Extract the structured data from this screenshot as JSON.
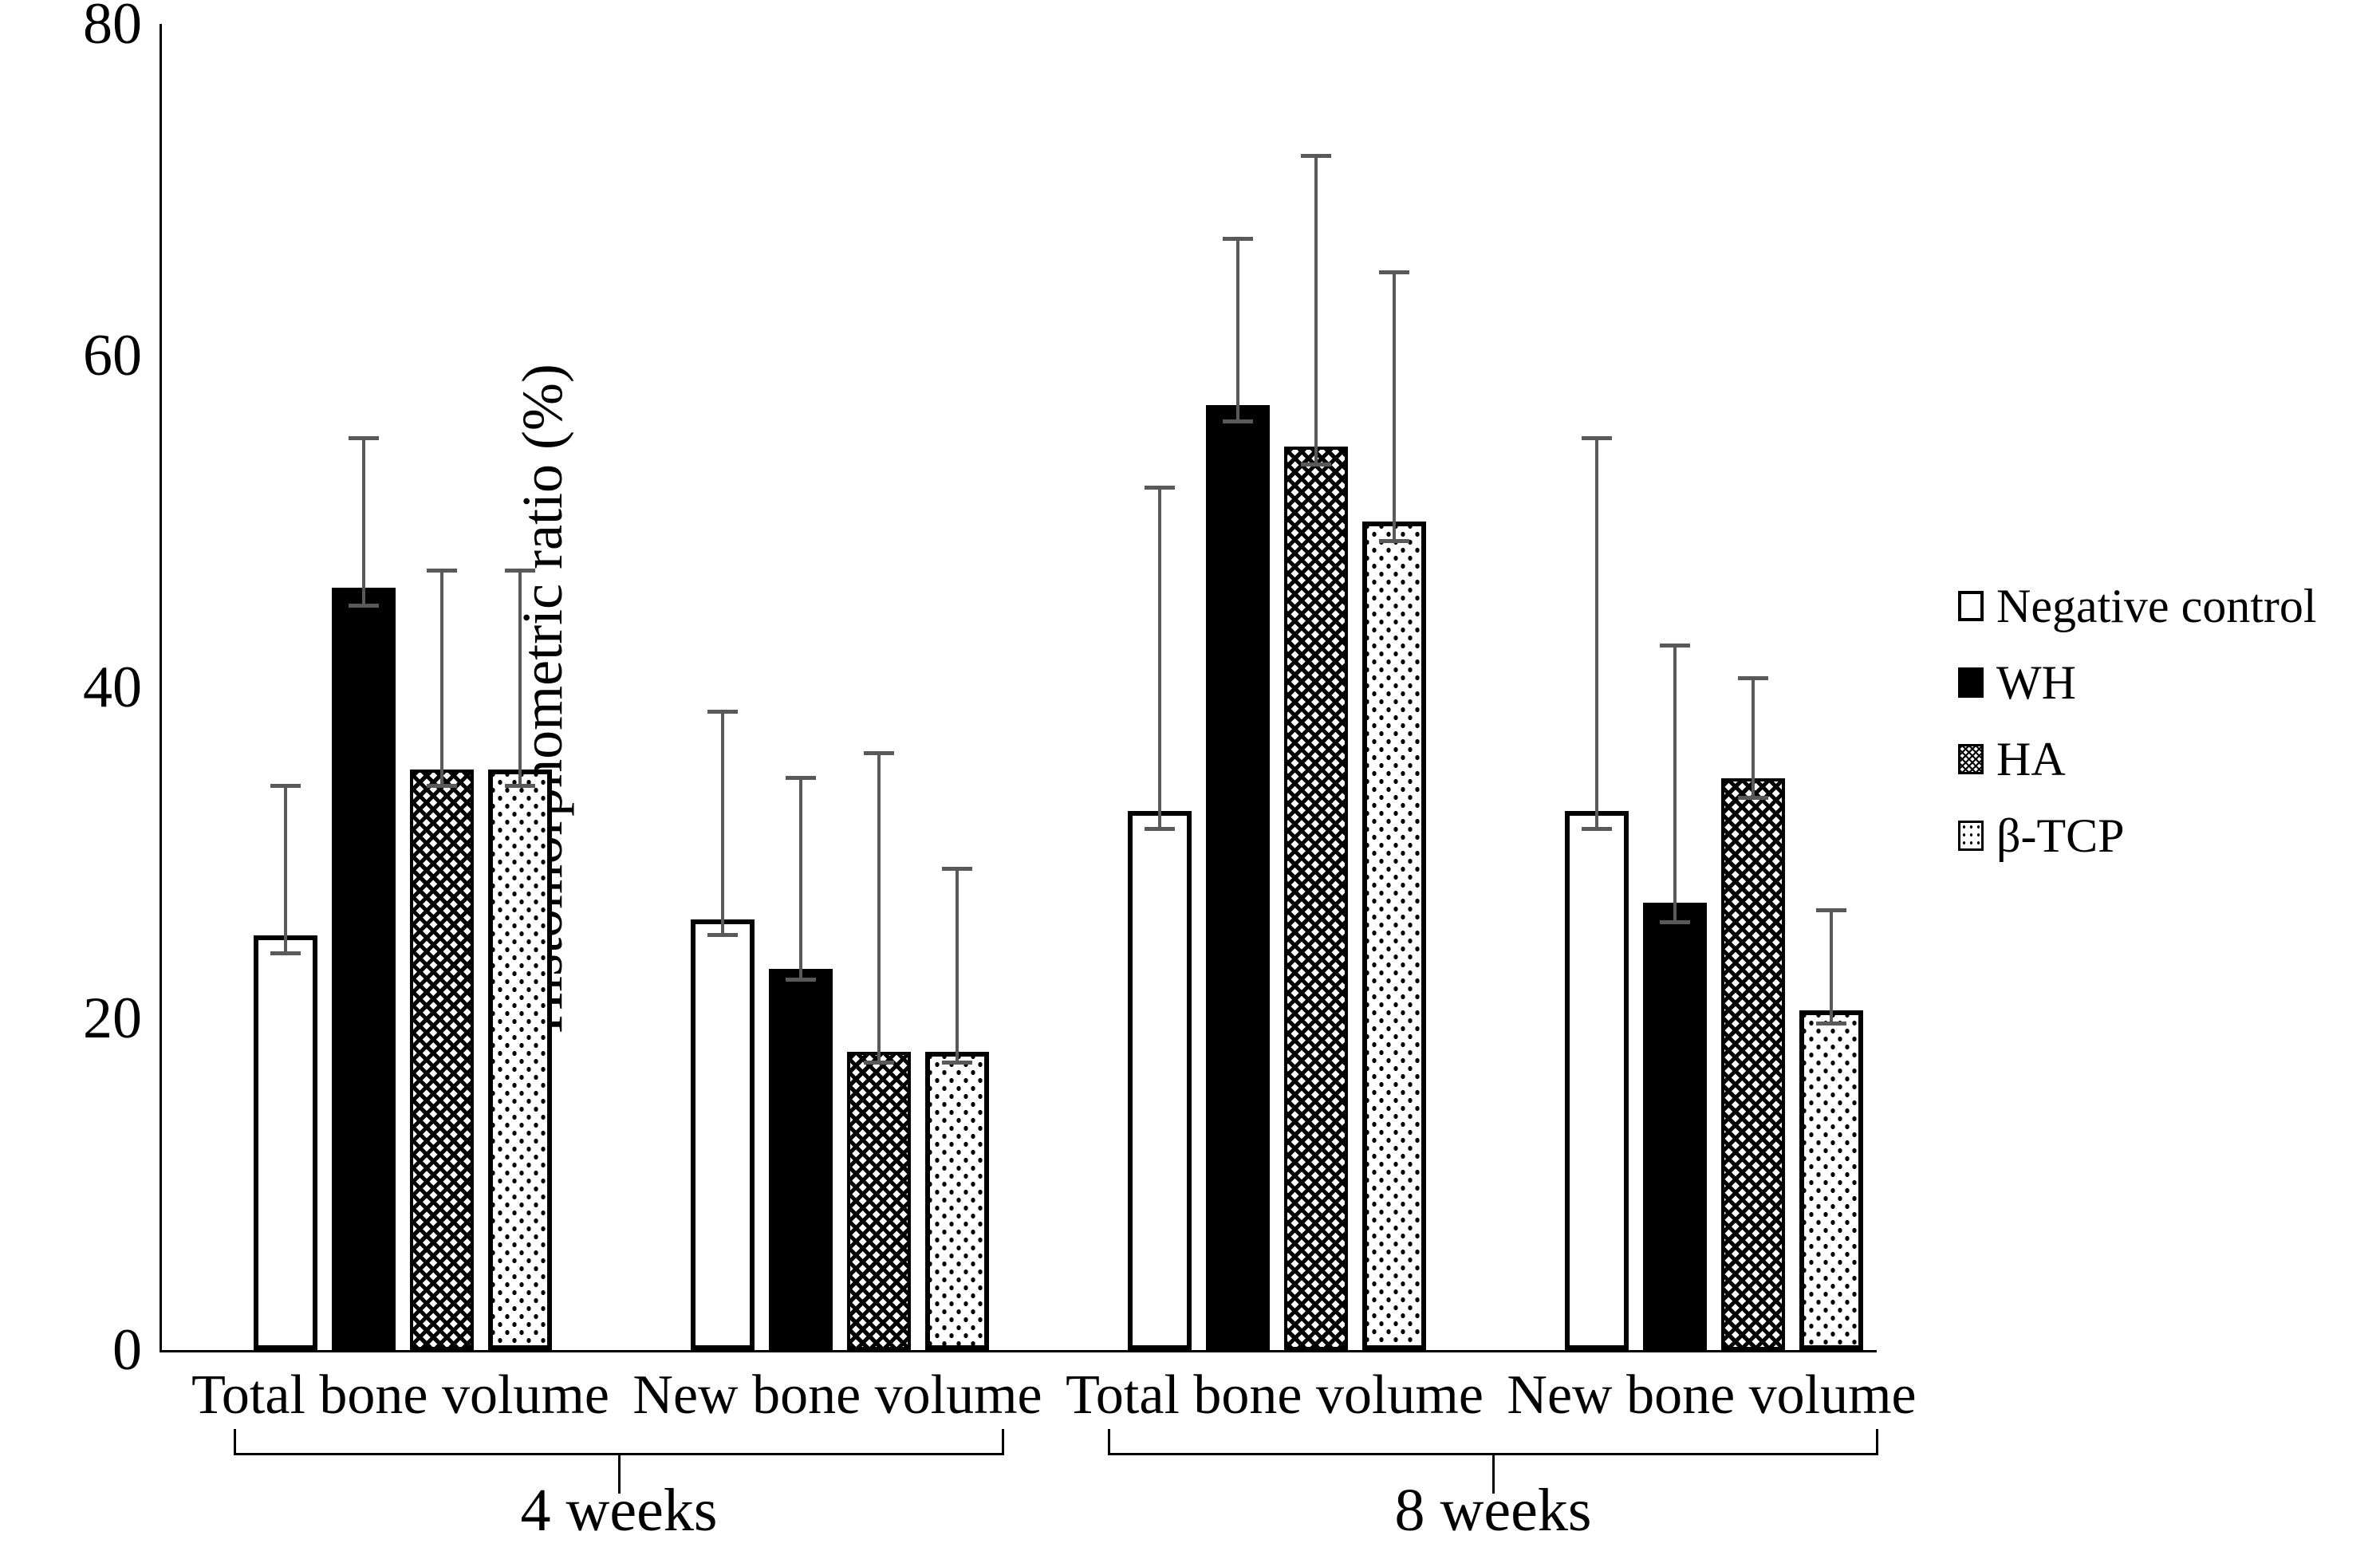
{
  "chart_data": {
    "type": "bar",
    "title": "",
    "ylabel": "Histomorphometric ratio (%)",
    "xlabel": "",
    "ylim": [
      0,
      80
    ],
    "yticks": [
      0,
      20,
      40,
      60,
      80
    ],
    "grid": false,
    "legend_position": "right",
    "categories": [
      "Total bone volume",
      "New bone volume",
      "Total bone volume",
      "New bone volume"
    ],
    "week_groups": [
      {
        "label": "4 weeks",
        "category_indexes": [
          0,
          1
        ]
      },
      {
        "label": "8 weeks",
        "category_indexes": [
          2,
          3
        ]
      }
    ],
    "series": [
      {
        "name": "Negative control",
        "pattern": "open",
        "values": [
          25,
          26,
          32.5,
          32.5
        ],
        "err_top": [
          34,
          38.5,
          52,
          55
        ],
        "err_bottom": [
          23.9,
          25,
          31.4,
          31.4
        ]
      },
      {
        "name": "WH",
        "pattern": "solid",
        "values": [
          46,
          23,
          57,
          27
        ],
        "err_top": [
          55,
          34.5,
          67,
          42.5
        ],
        "err_bottom": [
          44.9,
          22.3,
          56,
          25.8
        ]
      },
      {
        "name": "HA",
        "pattern": "crosshatch",
        "values": [
          35,
          18,
          54.5,
          34.5
        ],
        "err_top": [
          47,
          36,
          72,
          40.5
        ],
        "err_bottom": [
          34,
          17.3,
          53.4,
          33.3
        ]
      },
      {
        "name": "β-TCP",
        "pattern": "dots",
        "values": [
          35,
          18,
          50,
          20.5
        ],
        "err_top": [
          47,
          29,
          65,
          26.5
        ],
        "err_bottom": [
          34,
          17.3,
          48.8,
          19.7
        ]
      }
    ]
  },
  "colors": {
    "background": "#ffffff",
    "axis": "#000000",
    "text": "#000000",
    "bar_fill_dark": "#000000",
    "bar_fill_light": "#ffffff",
    "error_bar": "#595959"
  }
}
